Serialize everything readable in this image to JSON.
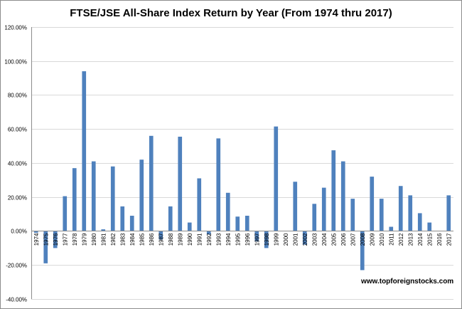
{
  "chart_data": {
    "type": "bar",
    "title": "FTSE/JSE All-Share Index Return by Year (From 1974 thru 2017)",
    "xlabel": "",
    "ylabel": "",
    "ylim": [
      -0.4,
      1.2
    ],
    "ytick_step": 0.2,
    "ytick_labels": [
      "-40.00%",
      "-20.00%",
      "0.00%",
      "20.00%",
      "40.00%",
      "60.00%",
      "80.00%",
      "100.00%",
      "120.00%"
    ],
    "grid": true,
    "legend": "none",
    "bar_color": "#4f81bd",
    "categories": [
      "1974",
      "1975",
      "1976",
      "1977",
      "1978",
      "1979",
      "1980",
      "1981",
      "1982",
      "1983",
      "1984",
      "1985",
      "1986",
      "1987",
      "1988",
      "1989",
      "1990",
      "1991",
      "1992",
      "1993",
      "1994",
      "1995",
      "1996",
      "1997",
      "1998",
      "1999",
      "2000",
      "2001",
      "2002",
      "2003",
      "2004",
      "2005",
      "2006",
      "2007",
      "2008",
      "2009",
      "2010",
      "2011",
      "2012",
      "2013",
      "2014",
      "2015",
      "2016",
      "2017"
    ],
    "values": [
      -0.01,
      -0.19,
      -0.1,
      0.205,
      0.37,
      0.94,
      0.41,
      0.01,
      0.38,
      0.145,
      0.09,
      0.42,
      0.56,
      -0.05,
      0.145,
      0.555,
      0.05,
      0.31,
      -0.02,
      0.545,
      0.225,
      0.085,
      0.09,
      -0.06,
      -0.1,
      0.615,
      0.0,
      0.29,
      -0.08,
      0.16,
      0.255,
      0.475,
      0.41,
      0.19,
      -0.23,
      0.32,
      0.19,
      0.025,
      0.265,
      0.21,
      0.105,
      0.05,
      0.0,
      0.21
    ]
  },
  "watermark": "www.topforeignstocks.com"
}
